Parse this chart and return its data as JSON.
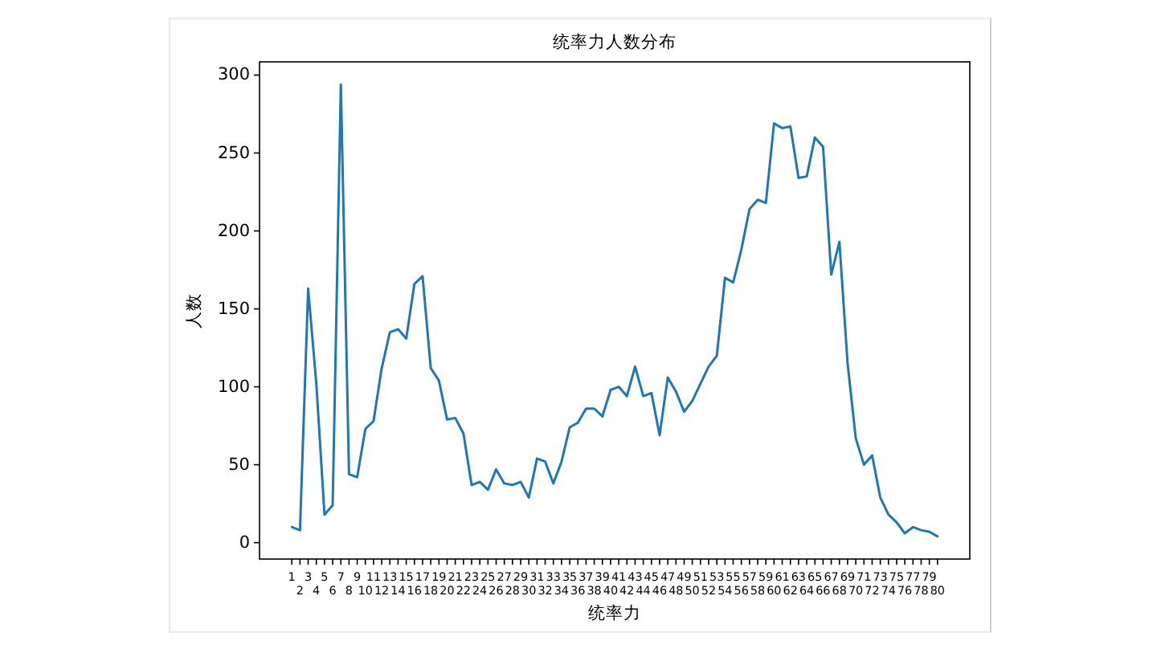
{
  "chart_data": {
    "type": "line",
    "title": "统率力人数分布",
    "xlabel": "统率力",
    "ylabel": "人数",
    "categories": [
      "1",
      "2",
      "3",
      "4",
      "5",
      "6",
      "7",
      "8",
      "9",
      "10",
      "11",
      "12",
      "13",
      "14",
      "15",
      "16",
      "17",
      "18",
      "19",
      "20",
      "21",
      "22",
      "23",
      "24",
      "25",
      "26",
      "27",
      "28",
      "29",
      "30",
      "31",
      "32",
      "33",
      "34",
      "35",
      "36",
      "37",
      "38",
      "39",
      "40",
      "41",
      "42",
      "43",
      "44",
      "45",
      "46",
      "47",
      "48",
      "49",
      "50",
      "51",
      "52",
      "53",
      "54",
      "55",
      "56",
      "57",
      "58",
      "59",
      "60",
      "61",
      "62",
      "63",
      "64",
      "65",
      "66",
      "67",
      "68",
      "69",
      "70",
      "71",
      "72",
      "73",
      "74",
      "75",
      "76",
      "77",
      "78",
      "79",
      "80"
    ],
    "values": [
      10,
      8,
      163,
      102,
      18,
      24,
      294,
      44,
      42,
      73,
      78,
      112,
      135,
      137,
      131,
      166,
      171,
      112,
      104,
      79,
      80,
      70,
      37,
      39,
      34,
      47,
      38,
      37,
      39,
      29,
      54,
      52,
      38,
      52,
      74,
      77,
      86,
      86,
      81,
      98,
      100,
      94,
      113,
      94,
      96,
      69,
      106,
      97,
      84,
      91,
      102,
      113,
      120,
      170,
      167,
      188,
      214,
      220,
      218,
      269,
      266,
      267,
      234,
      235,
      260,
      254,
      172,
      193,
      115,
      67,
      50,
      56,
      29,
      18,
      13,
      6,
      10,
      8,
      7,
      4
    ],
    "color": "#1f77b4",
    "ylim": [
      -10.5,
      308.5
    ],
    "yticks": [
      0,
      50,
      100,
      150,
      200,
      250,
      300
    ]
  }
}
